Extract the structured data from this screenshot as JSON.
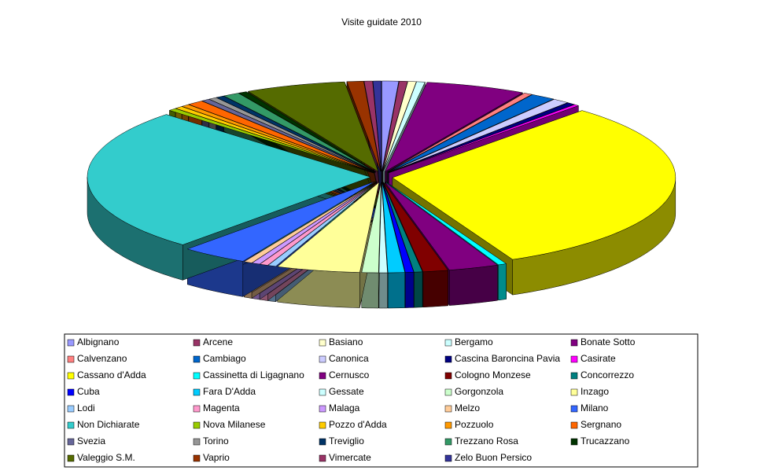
{
  "chart_data": {
    "type": "pie",
    "title": "Visite guidate 2010",
    "categories": [
      "Albignano",
      "Arcene",
      "Basiano",
      "Bergamo",
      "Bonate Sotto",
      "Calvenzano",
      "Cambiago",
      "Canonica",
      "Cascina Baroncina Pavia",
      "Casirate",
      "Cassano d'Adda",
      "Cassinetta di Ligagnano",
      "Cernusco",
      "Cologno Monzese",
      "Concorrezzo",
      "Cuba",
      "Fara D'Adda",
      "Gessate",
      "Gorgonzola",
      "Inzago",
      "Lodi",
      "Magenta",
      "Malaga",
      "Melzo",
      "Milano",
      "Non Dichiarate",
      "Nova Milanese",
      "Pozzo d'Adda",
      "Pozzuolo",
      "Sergnano",
      "Svezia",
      "Torino",
      "Treviglio",
      "Trezzano Rosa",
      "Trucazzano",
      "Valeggio S.M.",
      "Vaprio",
      "Vimercate",
      "Zelo Buon Persico"
    ],
    "values": [
      1,
      0.5,
      0.5,
      0.5,
      6,
      0.5,
      1.5,
      1,
      0.5,
      0.3,
      33,
      0.5,
      3,
      1.5,
      0.5,
      0.5,
      1,
      0.5,
      1,
      5,
      0.5,
      0.5,
      0.5,
      0.5,
      4,
      27,
      0.5,
      0.5,
      0.5,
      1,
      0.5,
      0.5,
      0.5,
      1,
      0.5,
      6,
      1,
      0.5,
      0.5
    ],
    "colors": [
      "#9999ff",
      "#993366",
      "#ffffcc",
      "#ccffff",
      "#800080",
      "#ff8080",
      "#0066cc",
      "#ccccff",
      "#000080",
      "#ff00ff",
      "#ffff00",
      "#00ffff",
      "#800080",
      "#800000",
      "#008080",
      "#0000ff",
      "#00ccff",
      "#ccffff",
      "#ccffcc",
      "#ffff99",
      "#99ccff",
      "#ff99cc",
      "#cc99ff",
      "#ffcc99",
      "#3366ff",
      "#33cccc",
      "#99cc00",
      "#ffcc00",
      "#ff9900",
      "#ff6600",
      "#666699",
      "#969696",
      "#003366",
      "#339966",
      "#003300",
      "#556b00",
      "#993300",
      "#993366",
      "#333399"
    ]
  }
}
